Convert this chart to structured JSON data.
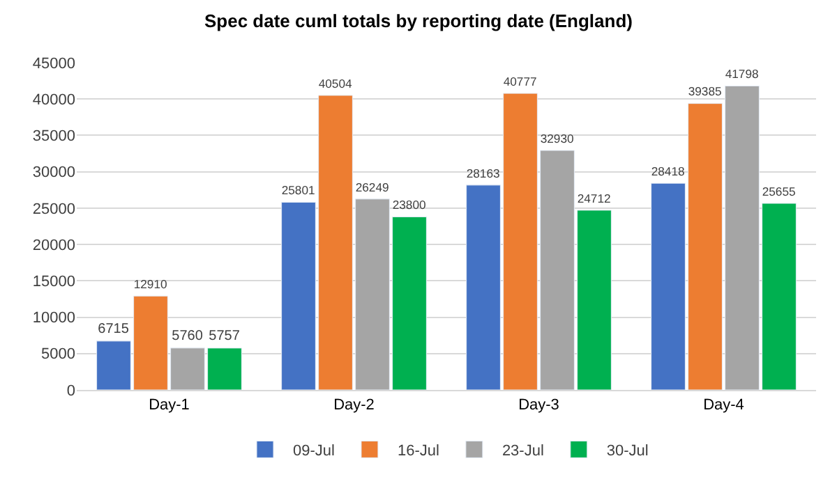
{
  "chart_data": {
    "type": "bar",
    "title": "Spec date cuml totals by reporting date (England)",
    "categories": [
      "Day-1",
      "Day-2",
      "Day-3",
      "Day-4"
    ],
    "series": [
      {
        "name": "09-Jul",
        "color": "#4472c4",
        "values": [
          6715,
          25801,
          28163,
          28418
        ]
      },
      {
        "name": "16-Jul",
        "color": "#ed7d31",
        "values": [
          12910,
          40504,
          40777,
          39385
        ]
      },
      {
        "name": "23-Jul",
        "color": "#a5a5a5",
        "values": [
          5760,
          26249,
          32930,
          41798
        ]
      },
      {
        "name": "30-Jul",
        "color": "#00b050",
        "values": [
          5757,
          23800,
          24712,
          25655
        ]
      }
    ],
    "ylim": [
      0,
      45000
    ],
    "yticks": [
      0,
      5000,
      10000,
      15000,
      20000,
      25000,
      30000,
      35000,
      40000,
      45000
    ],
    "grid": "y",
    "legend": "bottom",
    "data_labels": true
  }
}
